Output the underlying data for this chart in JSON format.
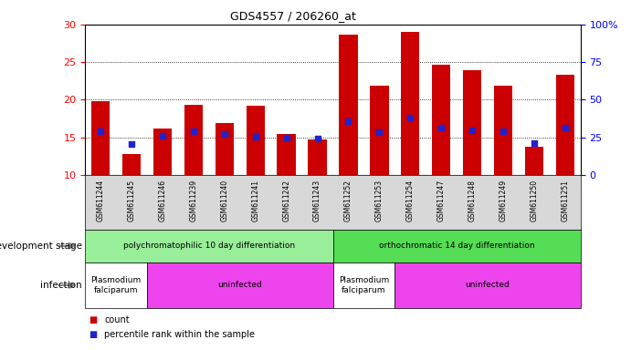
{
  "title": "GDS4557 / 206260_at",
  "samples": [
    "GSM611244",
    "GSM611245",
    "GSM611246",
    "GSM611239",
    "GSM611240",
    "GSM611241",
    "GSM611242",
    "GSM611243",
    "GSM611252",
    "GSM611253",
    "GSM611254",
    "GSM611247",
    "GSM611248",
    "GSM611249",
    "GSM611250",
    "GSM611251"
  ],
  "counts": [
    19.8,
    12.8,
    16.2,
    19.3,
    16.9,
    19.2,
    15.5,
    14.7,
    28.7,
    21.9,
    29.0,
    24.6,
    23.9,
    21.9,
    13.7,
    23.3
  ],
  "percentiles": [
    15.8,
    14.1,
    15.2,
    15.8,
    15.4,
    15.1,
    15.0,
    14.9,
    17.2,
    15.7,
    17.6,
    16.3,
    15.9,
    15.8,
    14.2,
    16.3
  ],
  "ylim_left": [
    10,
    30
  ],
  "ylim_right": [
    0,
    100
  ],
  "yticks_left": [
    10,
    15,
    20,
    25,
    30
  ],
  "yticks_right": [
    0,
    25,
    50,
    75,
    100
  ],
  "bar_color": "#cc0000",
  "dot_color": "#2222cc",
  "bg_color": "#ffffff",
  "development_stage_groups": [
    {
      "label": "polychromatophilic 10 day differentiation",
      "start": 0,
      "end": 8,
      "color": "#99ee99"
    },
    {
      "label": "orthochromatic 14 day differentiation",
      "start": 8,
      "end": 16,
      "color": "#55dd55"
    }
  ],
  "infection_groups": [
    {
      "label": "Plasmodium\nfalciparum",
      "start": 0,
      "end": 2,
      "color": "#ffffff"
    },
    {
      "label": "uninfected",
      "start": 2,
      "end": 8,
      "color": "#ee44ee"
    },
    {
      "label": "Plasmodium\nfalciparum",
      "start": 8,
      "end": 10,
      "color": "#ffffff"
    },
    {
      "label": "uninfected",
      "start": 10,
      "end": 16,
      "color": "#ee44ee"
    }
  ],
  "legend_count_color": "#cc0000",
  "legend_dot_color": "#2222cc",
  "dev_stage_label": "development stage",
  "infection_label": "infection"
}
